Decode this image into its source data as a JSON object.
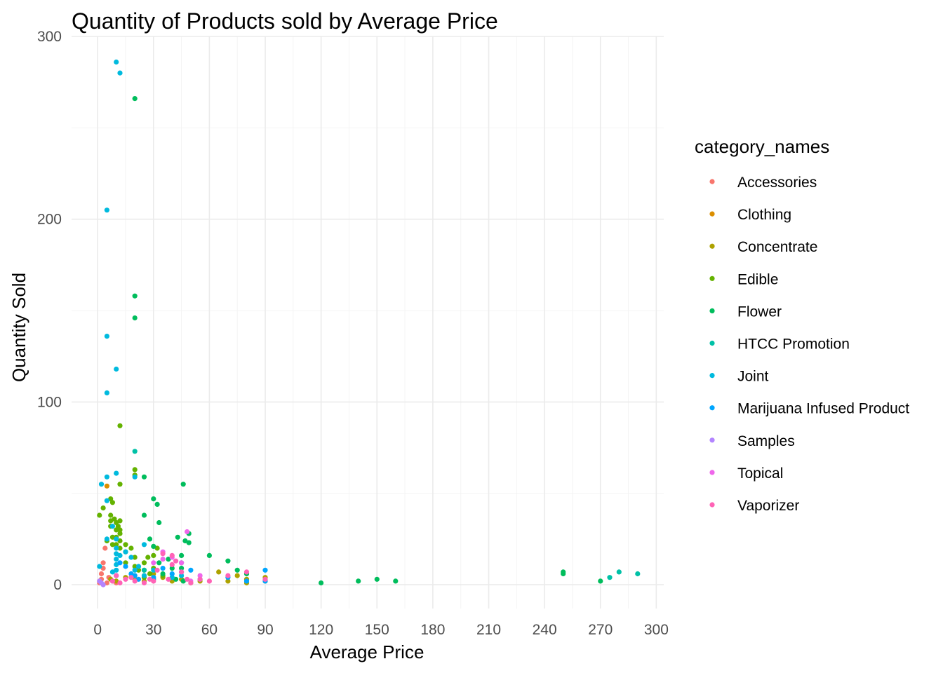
{
  "chart_data": {
    "type": "scatter",
    "title": "Quantity of Products sold by Average Price",
    "xlabel": "Average Price",
    "ylabel": "Quantity Sold",
    "xlim": [
      -14,
      304
    ],
    "ylim": [
      -13,
      300
    ],
    "x_ticks": [
      0,
      30,
      60,
      90,
      120,
      150,
      180,
      210,
      240,
      270,
      300
    ],
    "y_ticks": [
      0,
      100,
      200,
      300
    ],
    "grid": true,
    "legend": {
      "title": "category_names",
      "position": "right"
    },
    "series": [
      {
        "name": "Accessories",
        "color": "#F8766D",
        "points": [
          [
            1,
            1
          ],
          [
            2,
            3
          ],
          [
            2,
            6
          ],
          [
            3,
            9
          ],
          [
            3,
            12
          ],
          [
            4,
            20
          ],
          [
            1,
            2
          ],
          [
            5,
            1
          ],
          [
            6,
            4
          ],
          [
            8,
            2
          ],
          [
            10,
            1
          ]
        ]
      },
      {
        "name": "Clothing",
        "color": "#DB8E00",
        "points": [
          [
            5,
            54
          ],
          [
            20,
            5
          ],
          [
            30,
            3
          ],
          [
            25,
            5
          ]
        ]
      },
      {
        "name": "Concentrate",
        "color": "#AEA200",
        "points": [
          [
            7,
            3
          ],
          [
            10,
            2
          ],
          [
            15,
            4
          ],
          [
            20,
            3
          ],
          [
            25,
            2
          ],
          [
            30,
            6
          ],
          [
            35,
            4
          ],
          [
            40,
            2
          ],
          [
            45,
            3
          ],
          [
            50,
            1
          ],
          [
            55,
            2
          ],
          [
            65,
            7
          ],
          [
            70,
            2
          ],
          [
            75,
            5
          ],
          [
            80,
            3
          ],
          [
            80,
            1
          ],
          [
            90,
            2
          ],
          [
            90,
            4
          ]
        ]
      },
      {
        "name": "Edible",
        "color": "#64B200",
        "points": [
          [
            1,
            38
          ],
          [
            3,
            42
          ],
          [
            5,
            24
          ],
          [
            7,
            47
          ],
          [
            8,
            45
          ],
          [
            7,
            38
          ],
          [
            7,
            35
          ],
          [
            7,
            32
          ],
          [
            8,
            26
          ],
          [
            8,
            22
          ],
          [
            9,
            36
          ],
          [
            10,
            34
          ],
          [
            10,
            30
          ],
          [
            10,
            26
          ],
          [
            10,
            22
          ],
          [
            11,
            32
          ],
          [
            12,
            35
          ],
          [
            12,
            30
          ],
          [
            12,
            28
          ],
          [
            12,
            24
          ],
          [
            12,
            20
          ],
          [
            12,
            87
          ],
          [
            12,
            55
          ],
          [
            15,
            22
          ],
          [
            15,
            18
          ],
          [
            15,
            12
          ],
          [
            18,
            20
          ],
          [
            20,
            63
          ],
          [
            20,
            60
          ],
          [
            20,
            15
          ],
          [
            20,
            10
          ],
          [
            22,
            8
          ],
          [
            25,
            12
          ],
          [
            25,
            8
          ],
          [
            25,
            4
          ],
          [
            27,
            15
          ],
          [
            28,
            6
          ],
          [
            30,
            9
          ],
          [
            30,
            16
          ],
          [
            32,
            20
          ],
          [
            35,
            5
          ]
        ]
      },
      {
        "name": "Flower",
        "color": "#00BD5C",
        "points": [
          [
            20,
            266
          ],
          [
            20,
            158
          ],
          [
            20,
            146
          ],
          [
            25,
            59
          ],
          [
            25,
            38
          ],
          [
            28,
            25
          ],
          [
            30,
            47
          ],
          [
            30,
            21
          ],
          [
            32,
            44
          ],
          [
            33,
            34
          ],
          [
            33,
            12
          ],
          [
            35,
            6
          ],
          [
            38,
            14
          ],
          [
            40,
            9
          ],
          [
            42,
            3
          ],
          [
            43,
            26
          ],
          [
            45,
            16
          ],
          [
            45,
            12
          ],
          [
            45,
            9
          ],
          [
            46,
            55
          ],
          [
            47,
            24
          ],
          [
            49,
            28
          ],
          [
            49,
            23
          ],
          [
            46,
            2
          ],
          [
            60,
            16
          ],
          [
            70,
            13
          ],
          [
            75,
            8
          ],
          [
            80,
            6
          ],
          [
            120,
            1
          ],
          [
            140,
            2
          ],
          [
            150,
            3
          ],
          [
            160,
            2
          ],
          [
            250,
            7
          ],
          [
            250,
            6
          ],
          [
            270,
            2
          ]
        ]
      },
      {
        "name": "HTCC Promotion",
        "color": "#00C1A7",
        "points": [
          [
            20,
            73
          ],
          [
            25,
            8
          ],
          [
            275,
            4
          ],
          [
            280,
            7
          ],
          [
            290,
            6
          ]
        ]
      },
      {
        "name": "Joint",
        "color": "#00BADE",
        "points": [
          [
            10,
            286
          ],
          [
            12,
            280
          ],
          [
            5,
            205
          ],
          [
            5,
            136
          ],
          [
            10,
            118
          ],
          [
            5,
            105
          ],
          [
            10,
            61
          ],
          [
            5,
            59
          ],
          [
            2,
            55
          ],
          [
            5,
            46
          ],
          [
            5,
            25
          ],
          [
            8,
            32
          ],
          [
            10,
            25
          ],
          [
            10,
            20
          ],
          [
            10,
            17
          ],
          [
            10,
            14
          ],
          [
            10,
            11
          ],
          [
            10,
            8
          ],
          [
            12,
            16
          ],
          [
            15,
            18
          ],
          [
            18,
            15
          ],
          [
            20,
            59
          ],
          [
            22,
            10
          ],
          [
            25,
            22
          ],
          [
            1,
            10
          ],
          [
            8,
            7
          ],
          [
            10,
            5
          ],
          [
            20,
            8
          ],
          [
            25,
            5
          ],
          [
            30,
            8
          ],
          [
            40,
            4
          ],
          [
            45,
            5
          ],
          [
            30,
            3
          ]
        ]
      },
      {
        "name": "Marijuana Infused Product",
        "color": "#00A6FF",
        "points": [
          [
            12,
            12
          ],
          [
            15,
            10
          ],
          [
            18,
            6
          ],
          [
            20,
            5
          ],
          [
            22,
            3
          ],
          [
            30,
            4
          ],
          [
            35,
            9
          ],
          [
            40,
            6
          ],
          [
            45,
            7
          ],
          [
            50,
            8
          ],
          [
            55,
            3
          ],
          [
            70,
            4
          ],
          [
            80,
            2
          ],
          [
            90,
            8
          ],
          [
            90,
            2
          ]
        ]
      },
      {
        "name": "Samples",
        "color": "#B385FF",
        "points": [
          [
            1,
            2
          ],
          [
            2,
            1
          ],
          [
            3,
            0
          ]
        ]
      },
      {
        "name": "Topical",
        "color": "#EF67EB",
        "points": [
          [
            35,
            18
          ],
          [
            40,
            15
          ],
          [
            45,
            12
          ],
          [
            48,
            29
          ],
          [
            50,
            2
          ],
          [
            55,
            5
          ],
          [
            30,
            12
          ],
          [
            35,
            14
          ]
        ]
      },
      {
        "name": "Vaporizer",
        "color": "#FF63B6",
        "points": [
          [
            8,
            2
          ],
          [
            10,
            5
          ],
          [
            12,
            1
          ],
          [
            15,
            3
          ],
          [
            18,
            4
          ],
          [
            20,
            2
          ],
          [
            25,
            1
          ],
          [
            28,
            3
          ],
          [
            30,
            2
          ],
          [
            32,
            8
          ],
          [
            35,
            17
          ],
          [
            38,
            3
          ],
          [
            40,
            16
          ],
          [
            40,
            11
          ],
          [
            42,
            13
          ],
          [
            45,
            7
          ],
          [
            48,
            3
          ],
          [
            50,
            1
          ],
          [
            55,
            3
          ],
          [
            60,
            2
          ],
          [
            70,
            5
          ],
          [
            80,
            7
          ],
          [
            90,
            3
          ]
        ]
      }
    ]
  }
}
